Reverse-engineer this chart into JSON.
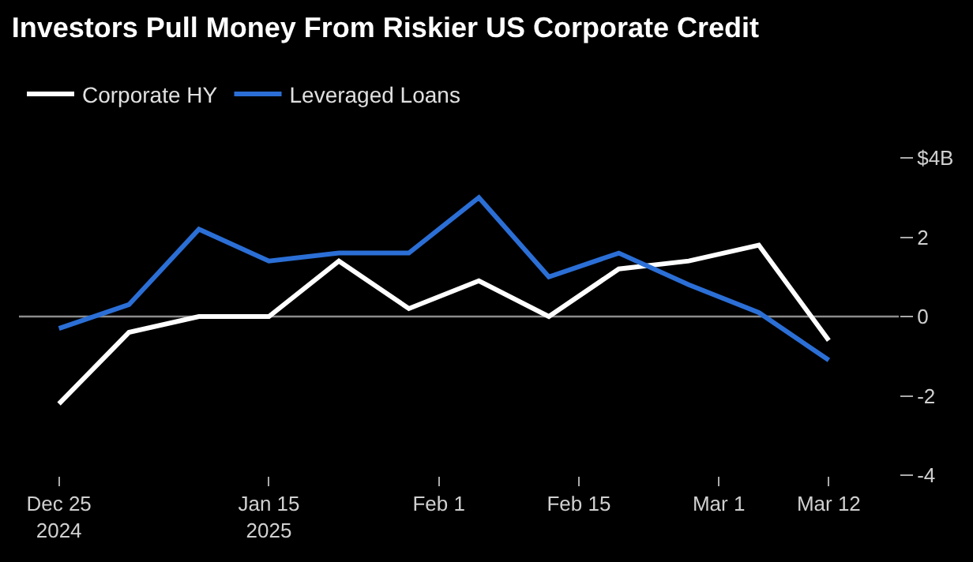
{
  "chart_data": {
    "type": "line",
    "title": "Investors Pull Money From Riskier US Corporate Credit",
    "x": [
      "2024-12-25",
      "2025-01-01",
      "2025-01-08",
      "2025-01-15",
      "2025-01-22",
      "2025-01-29",
      "2025-02-05",
      "2025-02-12",
      "2025-02-19",
      "2025-02-26",
      "2025-03-05",
      "2025-03-12"
    ],
    "series": [
      {
        "name": "Corporate HY",
        "color": "#ffffff",
        "values": [
          -2.2,
          -0.4,
          0.0,
          0.0,
          1.4,
          0.2,
          0.9,
          0.0,
          1.2,
          1.4,
          1.8,
          -0.6
        ]
      },
      {
        "name": "Leveraged Loans",
        "color": "#2b6fd6",
        "values": [
          -0.3,
          0.3,
          2.2,
          1.4,
          1.6,
          1.6,
          3.0,
          1.0,
          1.6,
          0.8,
          0.1,
          -1.1
        ]
      }
    ],
    "xlim": [
      "2024-12-21",
      "2025-03-19"
    ],
    "xticks": [
      {
        "value": "2024-12-25",
        "label": "Dec 25\n2024"
      },
      {
        "value": "2025-01-15",
        "label": "Jan 15\n2025"
      },
      {
        "value": "2025-02-01",
        "label": "Feb 1"
      },
      {
        "value": "2025-02-15",
        "label": "Feb 15"
      },
      {
        "value": "2025-03-01",
        "label": "Mar 1"
      },
      {
        "value": "2025-03-12",
        "label": "Mar 12"
      }
    ],
    "ylim": [
      -4,
      4
    ],
    "yticks": [
      {
        "value": -4,
        "label": "-4"
      },
      {
        "value": -2,
        "label": "-2"
      },
      {
        "value": 0,
        "label": "0"
      },
      {
        "value": 2,
        "label": "2"
      },
      {
        "value": 4,
        "label": "$4B"
      }
    ],
    "ref_lines": [
      {
        "axis": "y",
        "value": 0,
        "color": "#8c8c8c"
      }
    ],
    "grid": false,
    "legend": "top left",
    "marker": "none",
    "line_style": "solid"
  }
}
